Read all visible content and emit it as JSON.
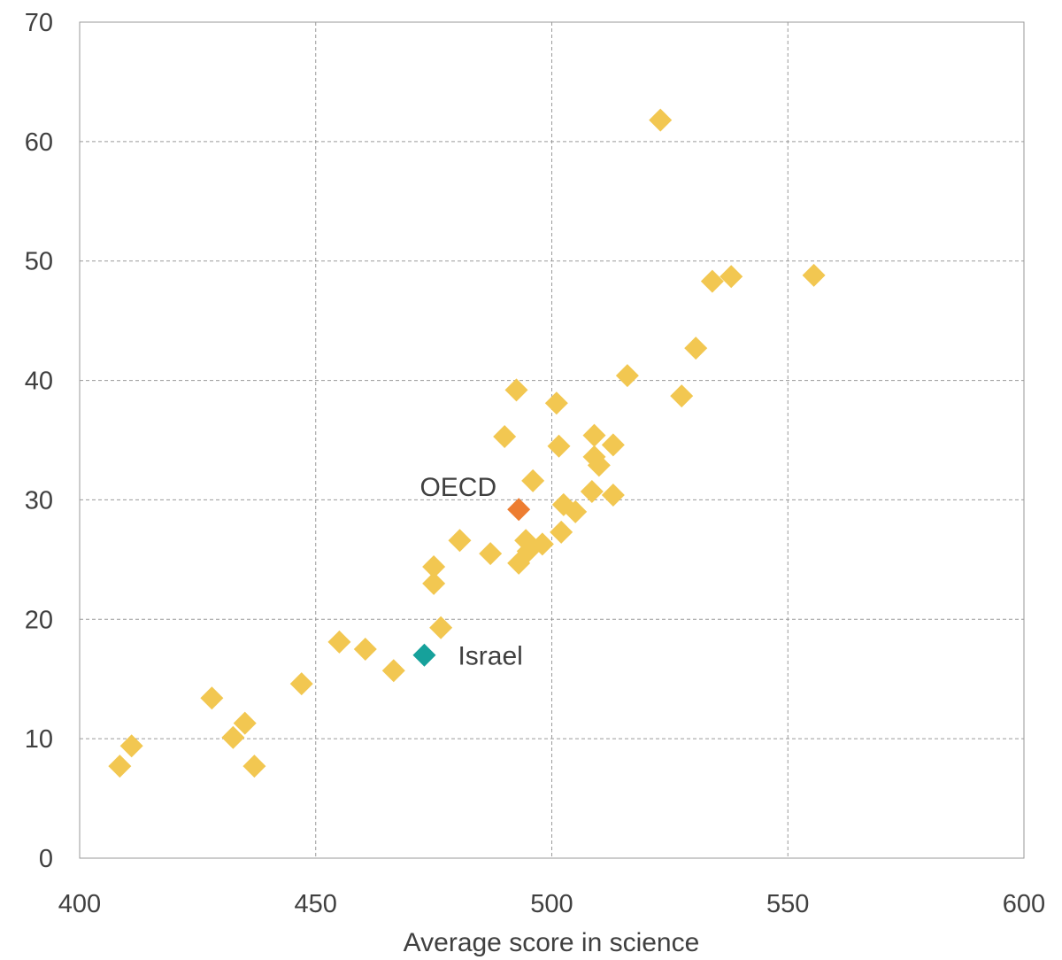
{
  "chart_data": {
    "type": "scatter",
    "title": "",
    "xlabel": "Average score in science",
    "ylabel": "",
    "xlim": [
      400,
      600
    ],
    "ylim": [
      0,
      70
    ],
    "xticks": [
      "400",
      "450",
      "500",
      "550",
      "600"
    ],
    "yticks": [
      "0",
      "10",
      "20",
      "30",
      "40",
      "50",
      "60",
      "70"
    ],
    "grid": true,
    "colors": {
      "countries": "#F2C751",
      "oecd": "#ED7D31",
      "israel": "#16A19B"
    },
    "series": [
      {
        "points": [
          [
            408.5,
            7.7
          ],
          [
            411.0,
            9.4
          ],
          [
            428.0,
            13.4
          ],
          [
            432.5,
            10.1
          ],
          [
            435.0,
            11.3
          ],
          [
            437.0,
            7.7
          ],
          [
            447.0,
            14.6
          ],
          [
            455.0,
            18.1
          ],
          [
            460.5,
            17.5
          ],
          [
            466.5,
            15.7
          ],
          [
            475.0,
            24.4
          ],
          [
            475.0,
            23.0
          ],
          [
            476.5,
            19.3
          ],
          [
            480.5,
            26.6
          ],
          [
            487.0,
            25.5
          ],
          [
            490.0,
            35.3
          ],
          [
            492.5,
            39.2
          ],
          [
            493.0,
            24.7
          ],
          [
            494.5,
            26.6
          ],
          [
            495.0,
            25.7
          ],
          [
            496.0,
            31.6
          ],
          [
            498.0,
            26.3
          ],
          [
            501.0,
            38.1
          ],
          [
            501.5,
            34.5
          ],
          [
            502.0,
            27.3
          ],
          [
            502.5,
            29.6
          ],
          [
            505.0,
            29.0
          ],
          [
            508.5,
            30.7
          ],
          [
            509.0,
            33.6
          ],
          [
            509.0,
            35.4
          ],
          [
            510.0,
            32.9
          ],
          [
            513.0,
            34.6
          ],
          [
            513.0,
            30.4
          ],
          [
            516.0,
            40.4
          ],
          [
            523.0,
            61.8
          ],
          [
            527.5,
            38.7
          ],
          [
            530.5,
            42.7
          ],
          [
            534.0,
            48.3
          ],
          [
            538.0,
            48.7
          ],
          [
            555.5,
            48.8
          ]
        ]
      },
      {
        "name": "OECD",
        "points": [
          [
            493.0,
            29.2
          ]
        ]
      },
      {
        "name": "Israel",
        "points": [
          [
            473.0,
            17.0
          ]
        ]
      }
    ]
  }
}
